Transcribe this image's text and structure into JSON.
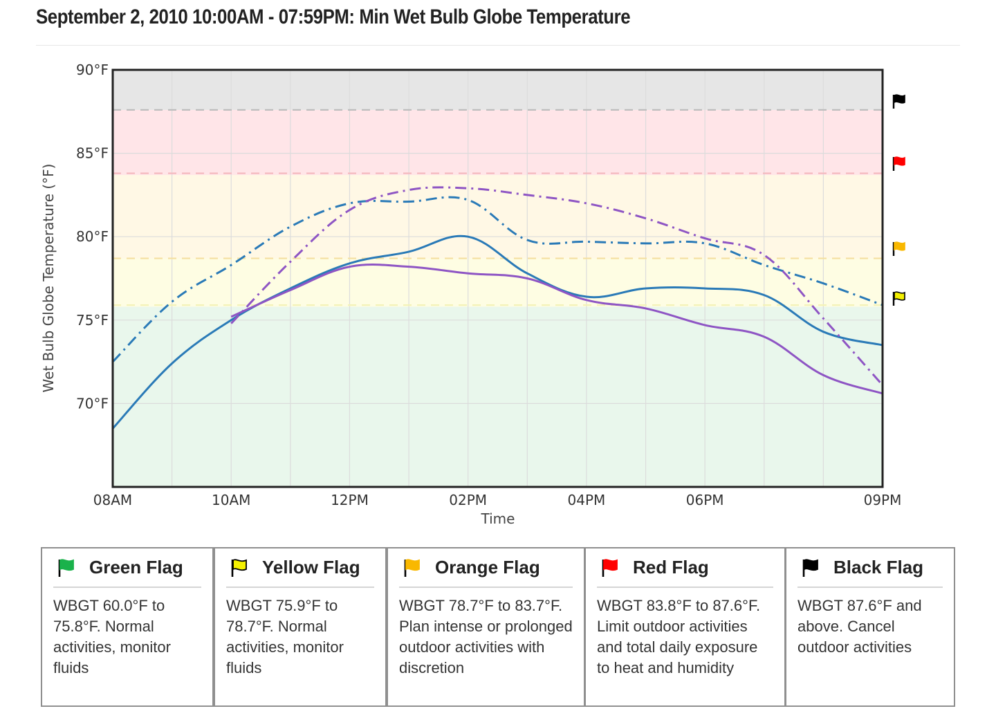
{
  "page": {
    "title": "September 2, 2010 10:00AM - 07:59PM: Min Wet Bulb Globe Temperature"
  },
  "chart_data": {
    "type": "line",
    "xlabel": "Time",
    "ylabel": "Wet Bulb Globe Temperature (°F)",
    "x_ticks": [
      {
        "hour": 8,
        "label": "08AM"
      },
      {
        "hour": 10,
        "label": "10AM"
      },
      {
        "hour": 12,
        "label": "12PM"
      },
      {
        "hour": 14,
        "label": "02PM"
      },
      {
        "hour": 16,
        "label": "04PM"
      },
      {
        "hour": 18,
        "label": "06PM"
      },
      {
        "hour": 21,
        "label": "09PM"
      }
    ],
    "y_ticks": [
      {
        "value": 70,
        "label": "70°F"
      },
      {
        "value": 75,
        "label": "75°F"
      },
      {
        "value": 80,
        "label": "80°F"
      },
      {
        "value": 85,
        "label": "85°F"
      },
      {
        "value": 90,
        "label": "90°F"
      }
    ],
    "xlim": [
      8,
      21
    ],
    "ylim": [
      65,
      90
    ],
    "grid": true,
    "thresholds": [
      {
        "flag": "yellow",
        "value": 75.9,
        "line_color": "#f3f3b8"
      },
      {
        "flag": "orange",
        "value": 78.7,
        "line_color": "#f5e0a0"
      },
      {
        "flag": "red",
        "value": 83.8,
        "line_color": "#f4b8bd"
      },
      {
        "flag": "black",
        "value": 87.6,
        "line_color": "#bdbdbd"
      }
    ],
    "bands": [
      {
        "flag": "green",
        "from": 65,
        "to": 75.8,
        "color": "#e9f7ec"
      },
      {
        "flag": "yellow",
        "from": 75.8,
        "to": 78.7,
        "color": "#fefde3"
      },
      {
        "flag": "orange",
        "from": 78.7,
        "to": 83.7,
        "color": "#fff8e5"
      },
      {
        "flag": "red",
        "from": 83.7,
        "to": 87.6,
        "color": "#ffe5e8"
      },
      {
        "flag": "black",
        "from": 87.6,
        "to": 90,
        "color": "#e6e6e6"
      }
    ],
    "series": [
      {
        "style": "solid",
        "color": "#2a7ab7",
        "x": [
          8,
          9,
          10,
          11,
          12,
          13,
          14,
          15,
          16,
          17,
          18,
          19,
          20,
          21
        ],
        "values": [
          68.5,
          72.4,
          75.0,
          76.9,
          78.4,
          79.1,
          80.0,
          77.8,
          76.4,
          76.9,
          76.9,
          76.5,
          74.3,
          73.5
        ]
      },
      {
        "style": "dashdot",
        "color": "#2a7ab7",
        "x": [
          8,
          9,
          10,
          11,
          12,
          13,
          14,
          15,
          16,
          17,
          18,
          19,
          20,
          21
        ],
        "values": [
          72.5,
          76.1,
          78.3,
          80.6,
          82.0,
          82.1,
          82.2,
          79.8,
          79.7,
          79.6,
          79.6,
          78.3,
          77.2,
          75.9
        ]
      },
      {
        "style": "solid",
        "color": "#8e55c4",
        "x": [
          10,
          11,
          12,
          13,
          14,
          15,
          16,
          17,
          18,
          19,
          20,
          21
        ],
        "values": [
          75.2,
          76.8,
          78.2,
          78.2,
          77.8,
          77.5,
          76.2,
          75.7,
          74.7,
          74.0,
          71.7,
          70.6
        ]
      },
      {
        "style": "dashdot",
        "color": "#8e55c4",
        "x": [
          10,
          11,
          12,
          13,
          14,
          15,
          16,
          17,
          18,
          19,
          20,
          21
        ],
        "values": [
          74.8,
          78.5,
          81.6,
          82.8,
          82.9,
          82.5,
          82.0,
          81.1,
          79.9,
          78.9,
          75.1,
          71.1
        ]
      }
    ]
  },
  "legend": [
    {
      "key": "green",
      "color": "#1ab24b",
      "icon": "green-flag-icon",
      "name": "Green Flag",
      "desc": "WBGT 60.0°F to 75.8°F. Normal activities, monitor fluids"
    },
    {
      "key": "yellow",
      "color": "#f4f000",
      "icon": "yellow-flag-icon",
      "name": "Yellow Flag",
      "desc": "WBGT 75.9°F to 78.7°F. Normal activities, monitor fluids"
    },
    {
      "key": "orange",
      "color": "#f9b800",
      "icon": "orange-flag-icon",
      "name": "Orange Flag",
      "desc": "WBGT 78.7°F to 83.7°F. Plan intense or prolonged outdoor activities with discretion"
    },
    {
      "key": "red",
      "color": "#ff0000",
      "icon": "red-flag-icon",
      "name": "Red Flag",
      "desc": "WBGT 83.8°F to 87.6°F. Limit outdoor activities and total daily exposure to heat and humidity"
    },
    {
      "key": "black",
      "color": "#000000",
      "icon": "black-flag-icon",
      "name": "Black Flag",
      "desc": "WBGT 87.6°F and above. Cancel outdoor activities"
    }
  ]
}
